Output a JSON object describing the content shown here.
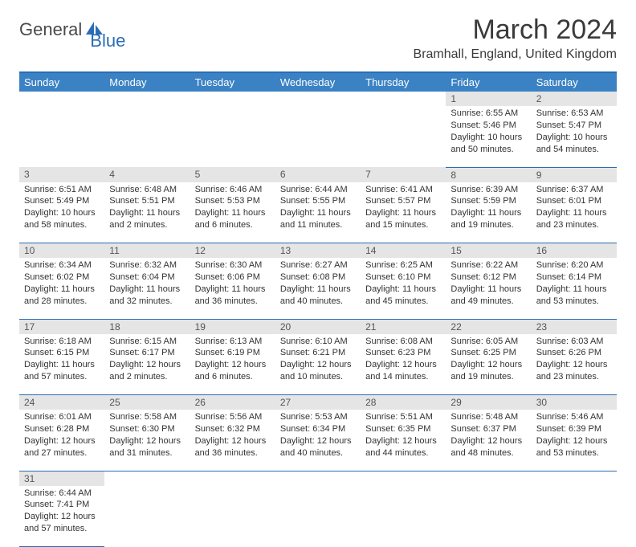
{
  "logo": {
    "part1": "General",
    "part2": "Blue"
  },
  "title": "March 2024",
  "location": "Bramhall, England, United Kingdom",
  "colors": {
    "header_bg": "#3b82c4",
    "header_border": "#2a6db5",
    "daynum_bg": "#e5e5e5",
    "text": "#333333",
    "logo_gray": "#4a4a4a",
    "logo_blue": "#2a6db5"
  },
  "fonts": {
    "title_size": 34,
    "location_size": 16,
    "header_size": 13,
    "cell_size": 11
  },
  "weekdays": [
    "Sunday",
    "Monday",
    "Tuesday",
    "Wednesday",
    "Thursday",
    "Friday",
    "Saturday"
  ],
  "weeks": [
    [
      null,
      null,
      null,
      null,
      null,
      {
        "n": "1",
        "sr": "6:55 AM",
        "ss": "5:46 PM",
        "dl": "10 hours and 50 minutes."
      },
      {
        "n": "2",
        "sr": "6:53 AM",
        "ss": "5:47 PM",
        "dl": "10 hours and 54 minutes."
      }
    ],
    [
      {
        "n": "3",
        "sr": "6:51 AM",
        "ss": "5:49 PM",
        "dl": "10 hours and 58 minutes."
      },
      {
        "n": "4",
        "sr": "6:48 AM",
        "ss": "5:51 PM",
        "dl": "11 hours and 2 minutes."
      },
      {
        "n": "5",
        "sr": "6:46 AM",
        "ss": "5:53 PM",
        "dl": "11 hours and 6 minutes."
      },
      {
        "n": "6",
        "sr": "6:44 AM",
        "ss": "5:55 PM",
        "dl": "11 hours and 11 minutes."
      },
      {
        "n": "7",
        "sr": "6:41 AM",
        "ss": "5:57 PM",
        "dl": "11 hours and 15 minutes."
      },
      {
        "n": "8",
        "sr": "6:39 AM",
        "ss": "5:59 PM",
        "dl": "11 hours and 19 minutes."
      },
      {
        "n": "9",
        "sr": "6:37 AM",
        "ss": "6:01 PM",
        "dl": "11 hours and 23 minutes."
      }
    ],
    [
      {
        "n": "10",
        "sr": "6:34 AM",
        "ss": "6:02 PM",
        "dl": "11 hours and 28 minutes."
      },
      {
        "n": "11",
        "sr": "6:32 AM",
        "ss": "6:04 PM",
        "dl": "11 hours and 32 minutes."
      },
      {
        "n": "12",
        "sr": "6:30 AM",
        "ss": "6:06 PM",
        "dl": "11 hours and 36 minutes."
      },
      {
        "n": "13",
        "sr": "6:27 AM",
        "ss": "6:08 PM",
        "dl": "11 hours and 40 minutes."
      },
      {
        "n": "14",
        "sr": "6:25 AM",
        "ss": "6:10 PM",
        "dl": "11 hours and 45 minutes."
      },
      {
        "n": "15",
        "sr": "6:22 AM",
        "ss": "6:12 PM",
        "dl": "11 hours and 49 minutes."
      },
      {
        "n": "16",
        "sr": "6:20 AM",
        "ss": "6:14 PM",
        "dl": "11 hours and 53 minutes."
      }
    ],
    [
      {
        "n": "17",
        "sr": "6:18 AM",
        "ss": "6:15 PM",
        "dl": "11 hours and 57 minutes."
      },
      {
        "n": "18",
        "sr": "6:15 AM",
        "ss": "6:17 PM",
        "dl": "12 hours and 2 minutes."
      },
      {
        "n": "19",
        "sr": "6:13 AM",
        "ss": "6:19 PM",
        "dl": "12 hours and 6 minutes."
      },
      {
        "n": "20",
        "sr": "6:10 AM",
        "ss": "6:21 PM",
        "dl": "12 hours and 10 minutes."
      },
      {
        "n": "21",
        "sr": "6:08 AM",
        "ss": "6:23 PM",
        "dl": "12 hours and 14 minutes."
      },
      {
        "n": "22",
        "sr": "6:05 AM",
        "ss": "6:25 PM",
        "dl": "12 hours and 19 minutes."
      },
      {
        "n": "23",
        "sr": "6:03 AM",
        "ss": "6:26 PM",
        "dl": "12 hours and 23 minutes."
      }
    ],
    [
      {
        "n": "24",
        "sr": "6:01 AM",
        "ss": "6:28 PM",
        "dl": "12 hours and 27 minutes."
      },
      {
        "n": "25",
        "sr": "5:58 AM",
        "ss": "6:30 PM",
        "dl": "12 hours and 31 minutes."
      },
      {
        "n": "26",
        "sr": "5:56 AM",
        "ss": "6:32 PM",
        "dl": "12 hours and 36 minutes."
      },
      {
        "n": "27",
        "sr": "5:53 AM",
        "ss": "6:34 PM",
        "dl": "12 hours and 40 minutes."
      },
      {
        "n": "28",
        "sr": "5:51 AM",
        "ss": "6:35 PM",
        "dl": "12 hours and 44 minutes."
      },
      {
        "n": "29",
        "sr": "5:48 AM",
        "ss": "6:37 PM",
        "dl": "12 hours and 48 minutes."
      },
      {
        "n": "30",
        "sr": "5:46 AM",
        "ss": "6:39 PM",
        "dl": "12 hours and 53 minutes."
      }
    ],
    [
      {
        "n": "31",
        "sr": "6:44 AM",
        "ss": "7:41 PM",
        "dl": "12 hours and 57 minutes."
      },
      null,
      null,
      null,
      null,
      null,
      null
    ]
  ],
  "labels": {
    "sunrise": "Sunrise:",
    "sunset": "Sunset:",
    "daylight": "Daylight:"
  }
}
